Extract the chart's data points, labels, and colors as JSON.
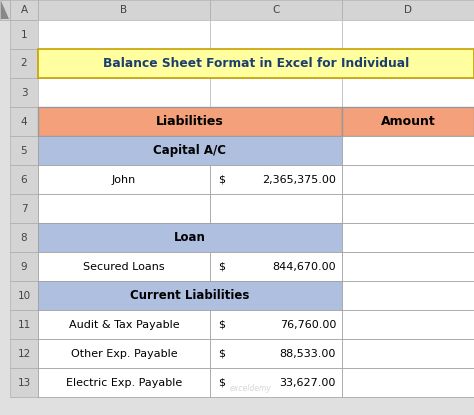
{
  "title": "Balance Sheet Format in Excel for Individual",
  "title_bg": "#FFFFA0",
  "title_border": "#C8A000",
  "col_headers": [
    "Liabilities",
    "Amount"
  ],
  "col_header_bg": "#F4A07A",
  "section_bg": "#AEBFDF",
  "white_bg": "#FFFFFF",
  "grid_color": "#BBBBBB",
  "outer_bg": "#E0E0E0",
  "rows": [
    {
      "type": "section",
      "label": "Capital A/C",
      "dollar": "",
      "value": ""
    },
    {
      "type": "data",
      "label": "John",
      "dollar": "$",
      "value": "2,365,375.00"
    },
    {
      "type": "empty",
      "label": "",
      "dollar": "",
      "value": ""
    },
    {
      "type": "section",
      "label": "Loan",
      "dollar": "",
      "value": ""
    },
    {
      "type": "data",
      "label": "Secured Loans",
      "dollar": "$",
      "value": "844,670.00"
    },
    {
      "type": "section",
      "label": "Current Liabilities",
      "dollar": "",
      "value": ""
    },
    {
      "type": "data",
      "label": "Audit & Tax Payable",
      "dollar": "$",
      "value": "76,760.00"
    },
    {
      "type": "data",
      "label": "Other Exp. Payable",
      "dollar": "$",
      "value": "88,533.00"
    },
    {
      "type": "data",
      "label": "Electric Exp. Payable",
      "dollar": "$",
      "value": "33,627.00"
    }
  ]
}
